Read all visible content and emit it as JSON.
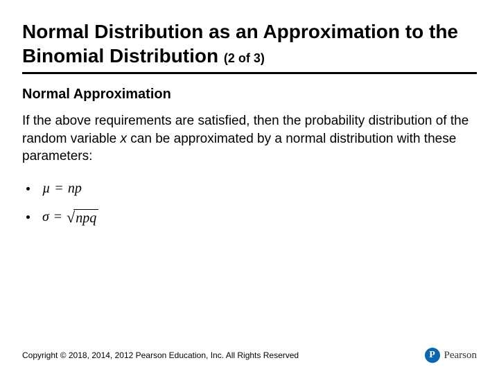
{
  "title_main": "Normal Distribution as an Approximation to the Binomial Distribution",
  "title_paren": "(2 of 3)",
  "subheading": "Normal Approximation",
  "body_before_x": "If the above requirements are satisfied, then the probability distribution of the random variable ",
  "body_var": "x",
  "body_after_x": " can be approximated by a normal distribution with these parameters:",
  "formula1": {
    "lhs": "µ",
    "eq": "=",
    "rhs": "np"
  },
  "formula2": {
    "lhs": "σ",
    "eq": "=",
    "rad": "npq"
  },
  "copyright": "Copyright © 2018, 2014, 2012 Pearson Education, Inc. All Rights Reserved",
  "logo": {
    "mark": "P",
    "text": "Pearson",
    "mark_bg": "#0a66b0"
  }
}
